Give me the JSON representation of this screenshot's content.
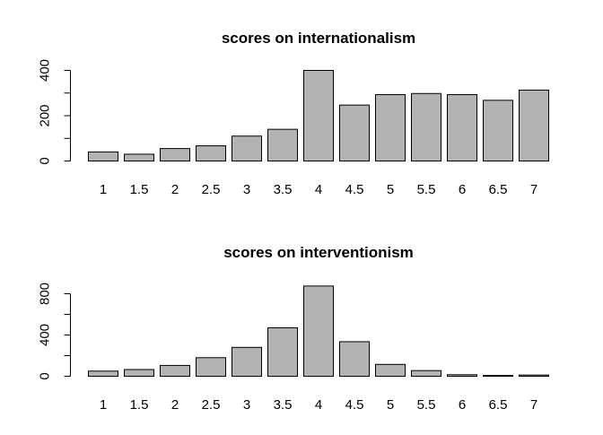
{
  "chart_data": [
    {
      "type": "bar",
      "title": "scores on internationalism",
      "xlabel": "",
      "ylabel": "",
      "categories": [
        "1",
        "1.5",
        "2",
        "2.5",
        "3",
        "3.5",
        "4",
        "4.5",
        "5",
        "5.5",
        "6",
        "6.5",
        "7"
      ],
      "values": [
        40,
        30,
        55,
        67,
        110,
        140,
        400,
        247,
        293,
        298,
        293,
        268,
        313
      ],
      "ylim": [
        0,
        420
      ],
      "yticks": [
        0,
        200,
        400
      ],
      "yminorticks": [
        100,
        300
      ],
      "bar_color": "#b3b3b3",
      "grid": false
    },
    {
      "type": "bar",
      "title": "scores on interventionism",
      "xlabel": "",
      "ylabel": "",
      "categories": [
        "1",
        "1.5",
        "2",
        "2.5",
        "3",
        "3.5",
        "4",
        "4.5",
        "5",
        "5.5",
        "6",
        "6.5",
        "7"
      ],
      "values": [
        50,
        65,
        105,
        180,
        280,
        470,
        875,
        335,
        115,
        55,
        15,
        8,
        12
      ],
      "ylim": [
        0,
        900
      ],
      "yticks": [
        0,
        400,
        800
      ],
      "yminorticks": [
        200,
        600
      ],
      "bar_color": "#b3b3b3",
      "grid": false
    }
  ]
}
